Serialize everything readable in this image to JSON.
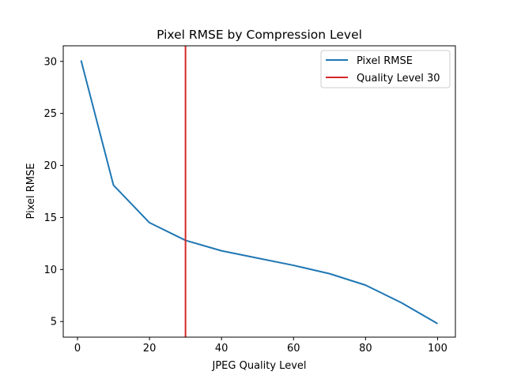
{
  "chart_data": {
    "type": "line",
    "title": "Pixel RMSE by Compression Level",
    "xlabel": "JPEG Quality Level",
    "ylabel": "Pixel RMSE",
    "xlim": [
      -3.95,
      104.95
    ],
    "ylim": [
      3.5,
      31.5
    ],
    "xticks": [
      0,
      20,
      40,
      60,
      80,
      100
    ],
    "yticks": [
      5,
      10,
      15,
      20,
      25,
      30
    ],
    "grid": false,
    "legend_position": "top-right",
    "series": [
      {
        "name": "Pixel RMSE",
        "color": "#1f77b4",
        "x": [
          1,
          10,
          20,
          30,
          40,
          50,
          60,
          70,
          80,
          90,
          100
        ],
        "y": [
          30.1,
          18.1,
          14.5,
          12.8,
          11.8,
          11.1,
          10.4,
          9.6,
          8.5,
          6.8,
          4.8
        ]
      }
    ],
    "vlines": [
      {
        "name": "Quality Level 30",
        "x": 30,
        "color": "#d62728"
      }
    ]
  }
}
